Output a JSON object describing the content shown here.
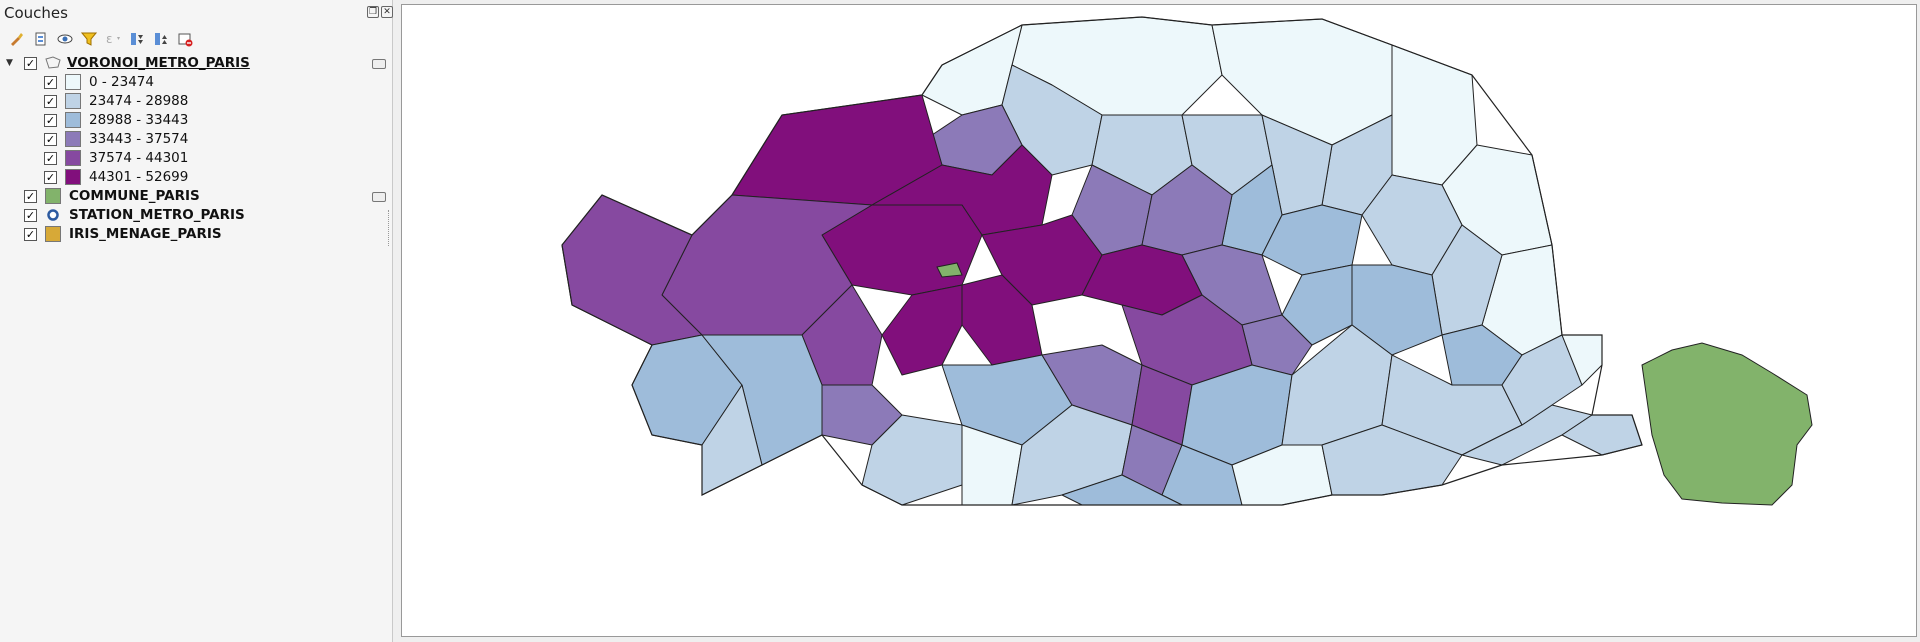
{
  "panel": {
    "title": "Couches"
  },
  "toolbar": [
    {
      "name": "style-manager-icon"
    },
    {
      "name": "add-group-icon"
    },
    {
      "name": "visibility-icon"
    },
    {
      "name": "filter-icon"
    },
    {
      "name": "filter-expression-icon"
    },
    {
      "name": "expand-all-icon"
    },
    {
      "name": "collapse-all-icon"
    },
    {
      "name": "remove-layer-icon"
    }
  ],
  "layers": {
    "voronoi": {
      "name": "VORONOI_METRO_PARIS",
      "checked": true,
      "classes": [
        {
          "label": "0 - 23474",
          "color": "#edf8fb"
        },
        {
          "label": "23474 - 28988",
          "color": "#bfd3e6"
        },
        {
          "label": "28988 - 33443",
          "color": "#9ebcda"
        },
        {
          "label": "33443 - 37574",
          "color": "#8c7ab8"
        },
        {
          "label": "37574 - 44301",
          "color": "#8649a0"
        },
        {
          "label": "44301 - 52699",
          "color": "#810f7c"
        }
      ]
    },
    "commune": {
      "name": "COMMUNE_PARIS",
      "color": "#82b36b"
    },
    "station": {
      "name": "STATION_METRO_PARIS",
      "color": "#2c5aa0"
    },
    "iris": {
      "name": "IRIS_MENAGE_PARIS",
      "color": "#d7a937"
    }
  },
  "map": {
    "outline_color": "#222222",
    "bois_color": "#82b36b"
  }
}
